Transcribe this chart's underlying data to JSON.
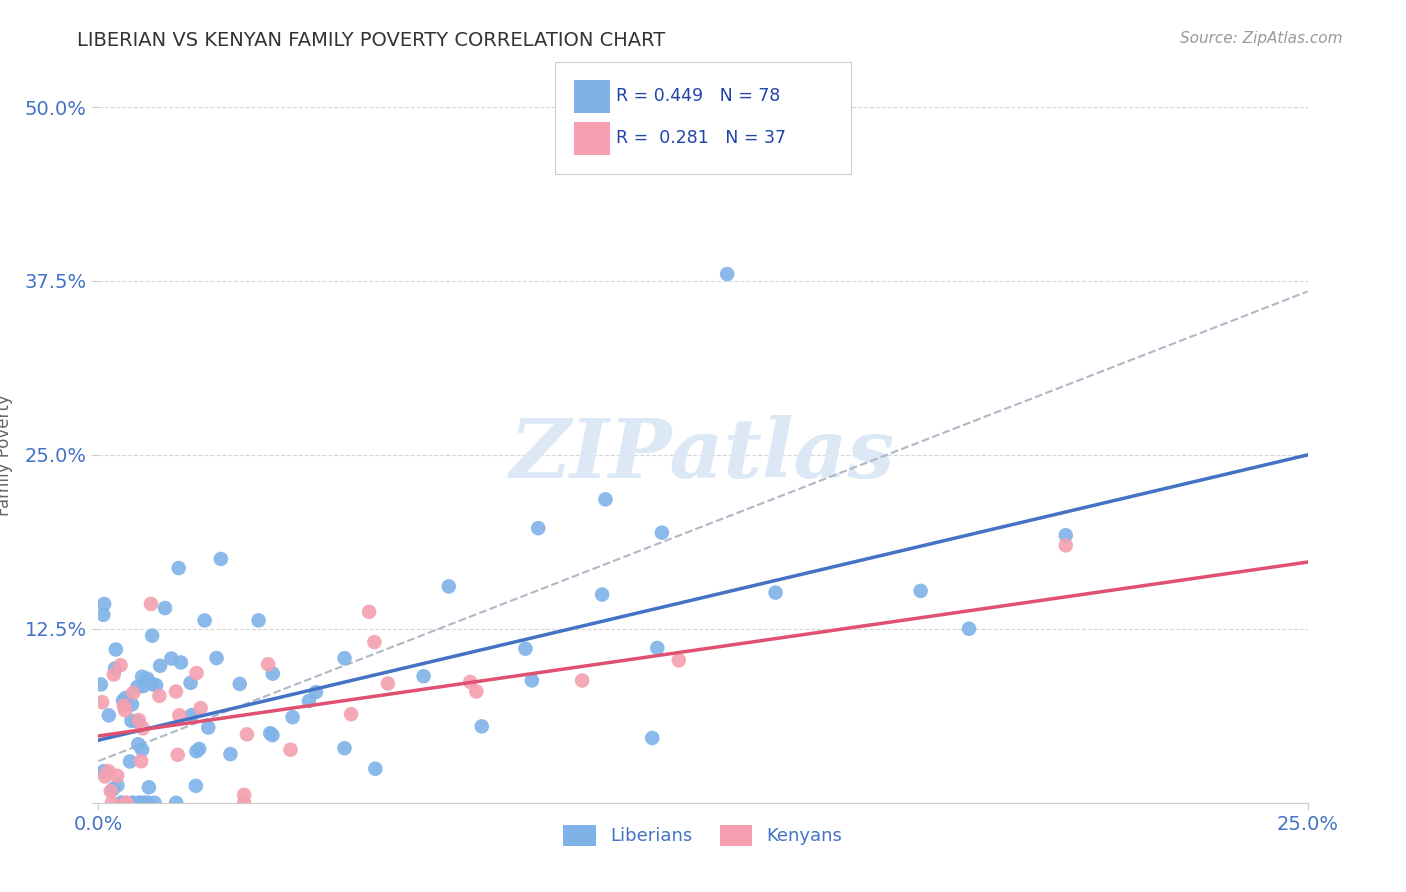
{
  "title": "LIBERIAN VS KENYAN FAMILY POVERTY CORRELATION CHART",
  "source": "Source: ZipAtlas.com",
  "ylabel": "Family Poverty",
  "xlim": [
    0.0,
    0.25
  ],
  "ylim": [
    0.0,
    0.5
  ],
  "yticks": [
    0.0,
    0.125,
    0.25,
    0.375,
    0.5
  ],
  "ytick_labels": [
    "",
    "12.5%",
    "25.0%",
    "37.5%",
    "50.0%"
  ],
  "xtick_labels": [
    "0.0%",
    "25.0%"
  ],
  "liberian_R": 0.449,
  "liberian_N": 78,
  "kenyan_R": 0.281,
  "kenyan_N": 37,
  "liberian_color": "#7fb3e8",
  "kenyan_color": "#f4a0b0",
  "liberian_line_color": "#4472c4",
  "kenyan_line_color": "#e05070",
  "dashed_line_color": "#b0b8c8",
  "background_color": "#ffffff",
  "grid_color": "#cccccc",
  "title_color": "#333333",
  "tick_label_color": "#4472c4",
  "watermark_color": "#dce8f5"
}
